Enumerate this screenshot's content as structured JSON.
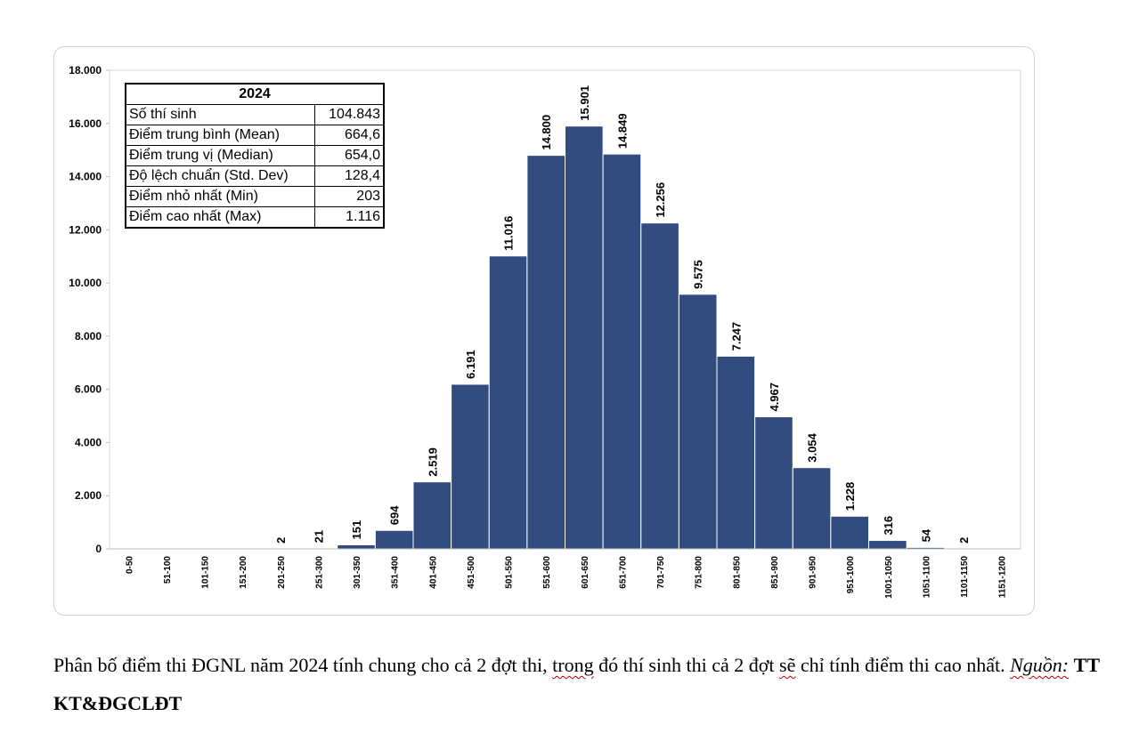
{
  "chart_data": {
    "type": "bar",
    "categories": [
      "0-50",
      "51-100",
      "101-150",
      "151-200",
      "201-250",
      "251-300",
      "301-350",
      "351-400",
      "401-450",
      "451-500",
      "501-550",
      "551-600",
      "601-650",
      "651-700",
      "701-750",
      "751-800",
      "801-850",
      "851-900",
      "901-950",
      "951-1000",
      "1001-1050",
      "1051-1100",
      "1101-1150",
      "1151-1200"
    ],
    "values": [
      0,
      0,
      0,
      0,
      2,
      21,
      151,
      694,
      2519,
      6191,
      11016,
      14800,
      15901,
      14849,
      12256,
      9575,
      7247,
      4967,
      3054,
      1228,
      316,
      54,
      2,
      0
    ],
    "data_labels": [
      "",
      "",
      "",
      "",
      "2",
      "21",
      "151",
      "694",
      "2.519",
      "6.191",
      "11.016",
      "14.800",
      "15.901",
      "14.849",
      "12.256",
      "9.575",
      "7.247",
      "4.967",
      "3.054",
      "1.228",
      "316",
      "54",
      "2",
      ""
    ],
    "y_ticks": [
      0,
      2000,
      4000,
      6000,
      8000,
      10000,
      12000,
      14000,
      16000,
      18000
    ],
    "y_tick_labels": [
      "0",
      "2.000",
      "4.000",
      "6.000",
      "8.000",
      "10.000",
      "12.000",
      "14.000",
      "16.000",
      "18.000"
    ],
    "ylim": [
      0,
      18000
    ],
    "bar_color": "#334c80",
    "grid": false,
    "title": "",
    "xlabel": "",
    "ylabel": ""
  },
  "stats_table": {
    "header": "2024",
    "rows": [
      {
        "label": "Số thí sinh",
        "value": "104.843"
      },
      {
        "label": "Điểm trung bình (Mean)",
        "value": "664,6"
      },
      {
        "label": "Điểm trung vị (Median)",
        "value": "654,0"
      },
      {
        "label": "Độ lệch chuẩn (Std. Dev)",
        "value": "128,4"
      },
      {
        "label": "Điểm nhỏ nhất (Min)",
        "value": "203"
      },
      {
        "label": "Điểm cao nhất (Max)",
        "value": "1.116"
      }
    ]
  },
  "caption": {
    "part1": "Phân bố điểm thi ĐGNL năm 2024 tính chung cho cả 2 đợt thi, ",
    "trong": "trong",
    "part2": " đó thí sinh thi cả 2 đợt ",
    "se": "sẽ",
    "part3": " chỉ tính điểm thi cao nhất. ",
    "source_label": "Nguồn:",
    "source_name": "TT KT&ĐGCLĐT"
  }
}
